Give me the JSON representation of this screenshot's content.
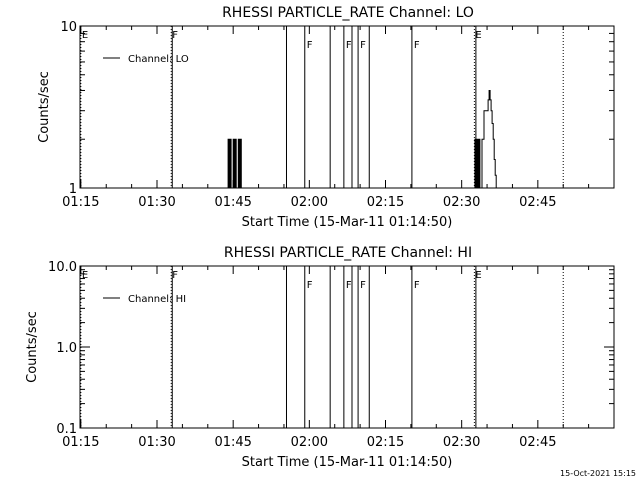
{
  "chart_data": [
    {
      "type": "line",
      "title": "RHESSI PARTICLE_RATE Channel: LO",
      "xlabel": "Start Time (15-Mar-11 01:14:50)",
      "ylabel": "Counts/sec",
      "x_ticks": [
        "01:15",
        "01:30",
        "01:45",
        "02:00",
        "02:15",
        "02:30",
        "02:45"
      ],
      "y_ticks": [
        "1",
        "10"
      ],
      "y_scale": "log",
      "ylim": [
        1,
        10
      ],
      "xlim": [
        "01:14:50",
        "03:00:00"
      ],
      "legend": {
        "position": "top-left",
        "label": "Channel: LO"
      },
      "series": [
        {
          "name": "Channel: LO",
          "x": [
            "01:43:48",
            "01:44:00",
            "01:44:12",
            "01:44:24",
            "01:44:36",
            "01:44:48",
            "01:45:00",
            "01:45:12",
            "01:45:24",
            "01:45:36",
            "01:45:48",
            "01:46:00",
            "01:46:12",
            "01:46:24",
            "01:46:36",
            "01:46:48",
            "01:47:00",
            "02:32:24",
            "02:32:36",
            "02:32:48",
            "02:33:00",
            "02:33:12",
            "02:33:24",
            "02:33:36",
            "02:33:48",
            "02:34:00",
            "02:34:12",
            "02:34:24",
            "02:34:36",
            "02:34:48",
            "02:35:00",
            "02:35:12",
            "02:35:24",
            "02:35:36",
            "02:35:48",
            "02:36:00",
            "02:36:12",
            "02:36:24",
            "02:36:36",
            "02:36:48",
            "02:37:00",
            "02:37:12",
            "02:37:24"
          ],
          "values": [
            1,
            2,
            1,
            2,
            1,
            1,
            2,
            1,
            2,
            1,
            1,
            2,
            1,
            2,
            1,
            1,
            1,
            1,
            2,
            1,
            2,
            1,
            2,
            1,
            1,
            2,
            2,
            3,
            3,
            3,
            3,
            3.5,
            4,
            3.5,
            3,
            2.5,
            2,
            1.5,
            1.2,
            1,
            1,
            1,
            1
          ]
        }
      ]
    },
    {
      "type": "line",
      "title": "RHESSI PARTICLE_RATE Channel: HI",
      "xlabel": "Start Time (15-Mar-11 01:14:50)",
      "ylabel": "Counts/sec",
      "x_ticks": [
        "01:15",
        "01:30",
        "01:45",
        "02:00",
        "02:15",
        "02:30",
        "02:45"
      ],
      "y_ticks": [
        "0.1",
        "1.0",
        "10.0"
      ],
      "y_scale": "log",
      "ylim": [
        0.1,
        10
      ],
      "xlim": [
        "01:14:50",
        "03:00:00"
      ],
      "legend": {
        "position": "top-left",
        "label": "Channel: HI"
      },
      "series": [
        {
          "name": "Channel: HI",
          "x": [],
          "values": []
        }
      ]
    }
  ],
  "flags": {
    "dotted": [
      {
        "time": "01:15:00",
        "letter": "E"
      },
      {
        "time": "01:32:48",
        "letter": "F"
      },
      {
        "time": "02:32:30",
        "letter": "E"
      },
      {
        "time": "02:50:00",
        "letter": ""
      }
    ],
    "solid": [
      {
        "time": "01:33:00",
        "letter": ""
      },
      {
        "time": "01:55:30",
        "letter": ""
      },
      {
        "time": "01:59:06",
        "letter": "F"
      },
      {
        "time": "02:04:06",
        "letter": ""
      },
      {
        "time": "02:06:48",
        "letter": "F"
      },
      {
        "time": "02:08:24",
        "letter": ""
      },
      {
        "time": "02:09:36",
        "letter": "F"
      },
      {
        "time": "02:11:48",
        "letter": ""
      },
      {
        "time": "02:20:12",
        "letter": "F"
      },
      {
        "time": "02:32:48",
        "letter": ""
      }
    ]
  },
  "timestamp": "15-Oct-2021 15:15"
}
